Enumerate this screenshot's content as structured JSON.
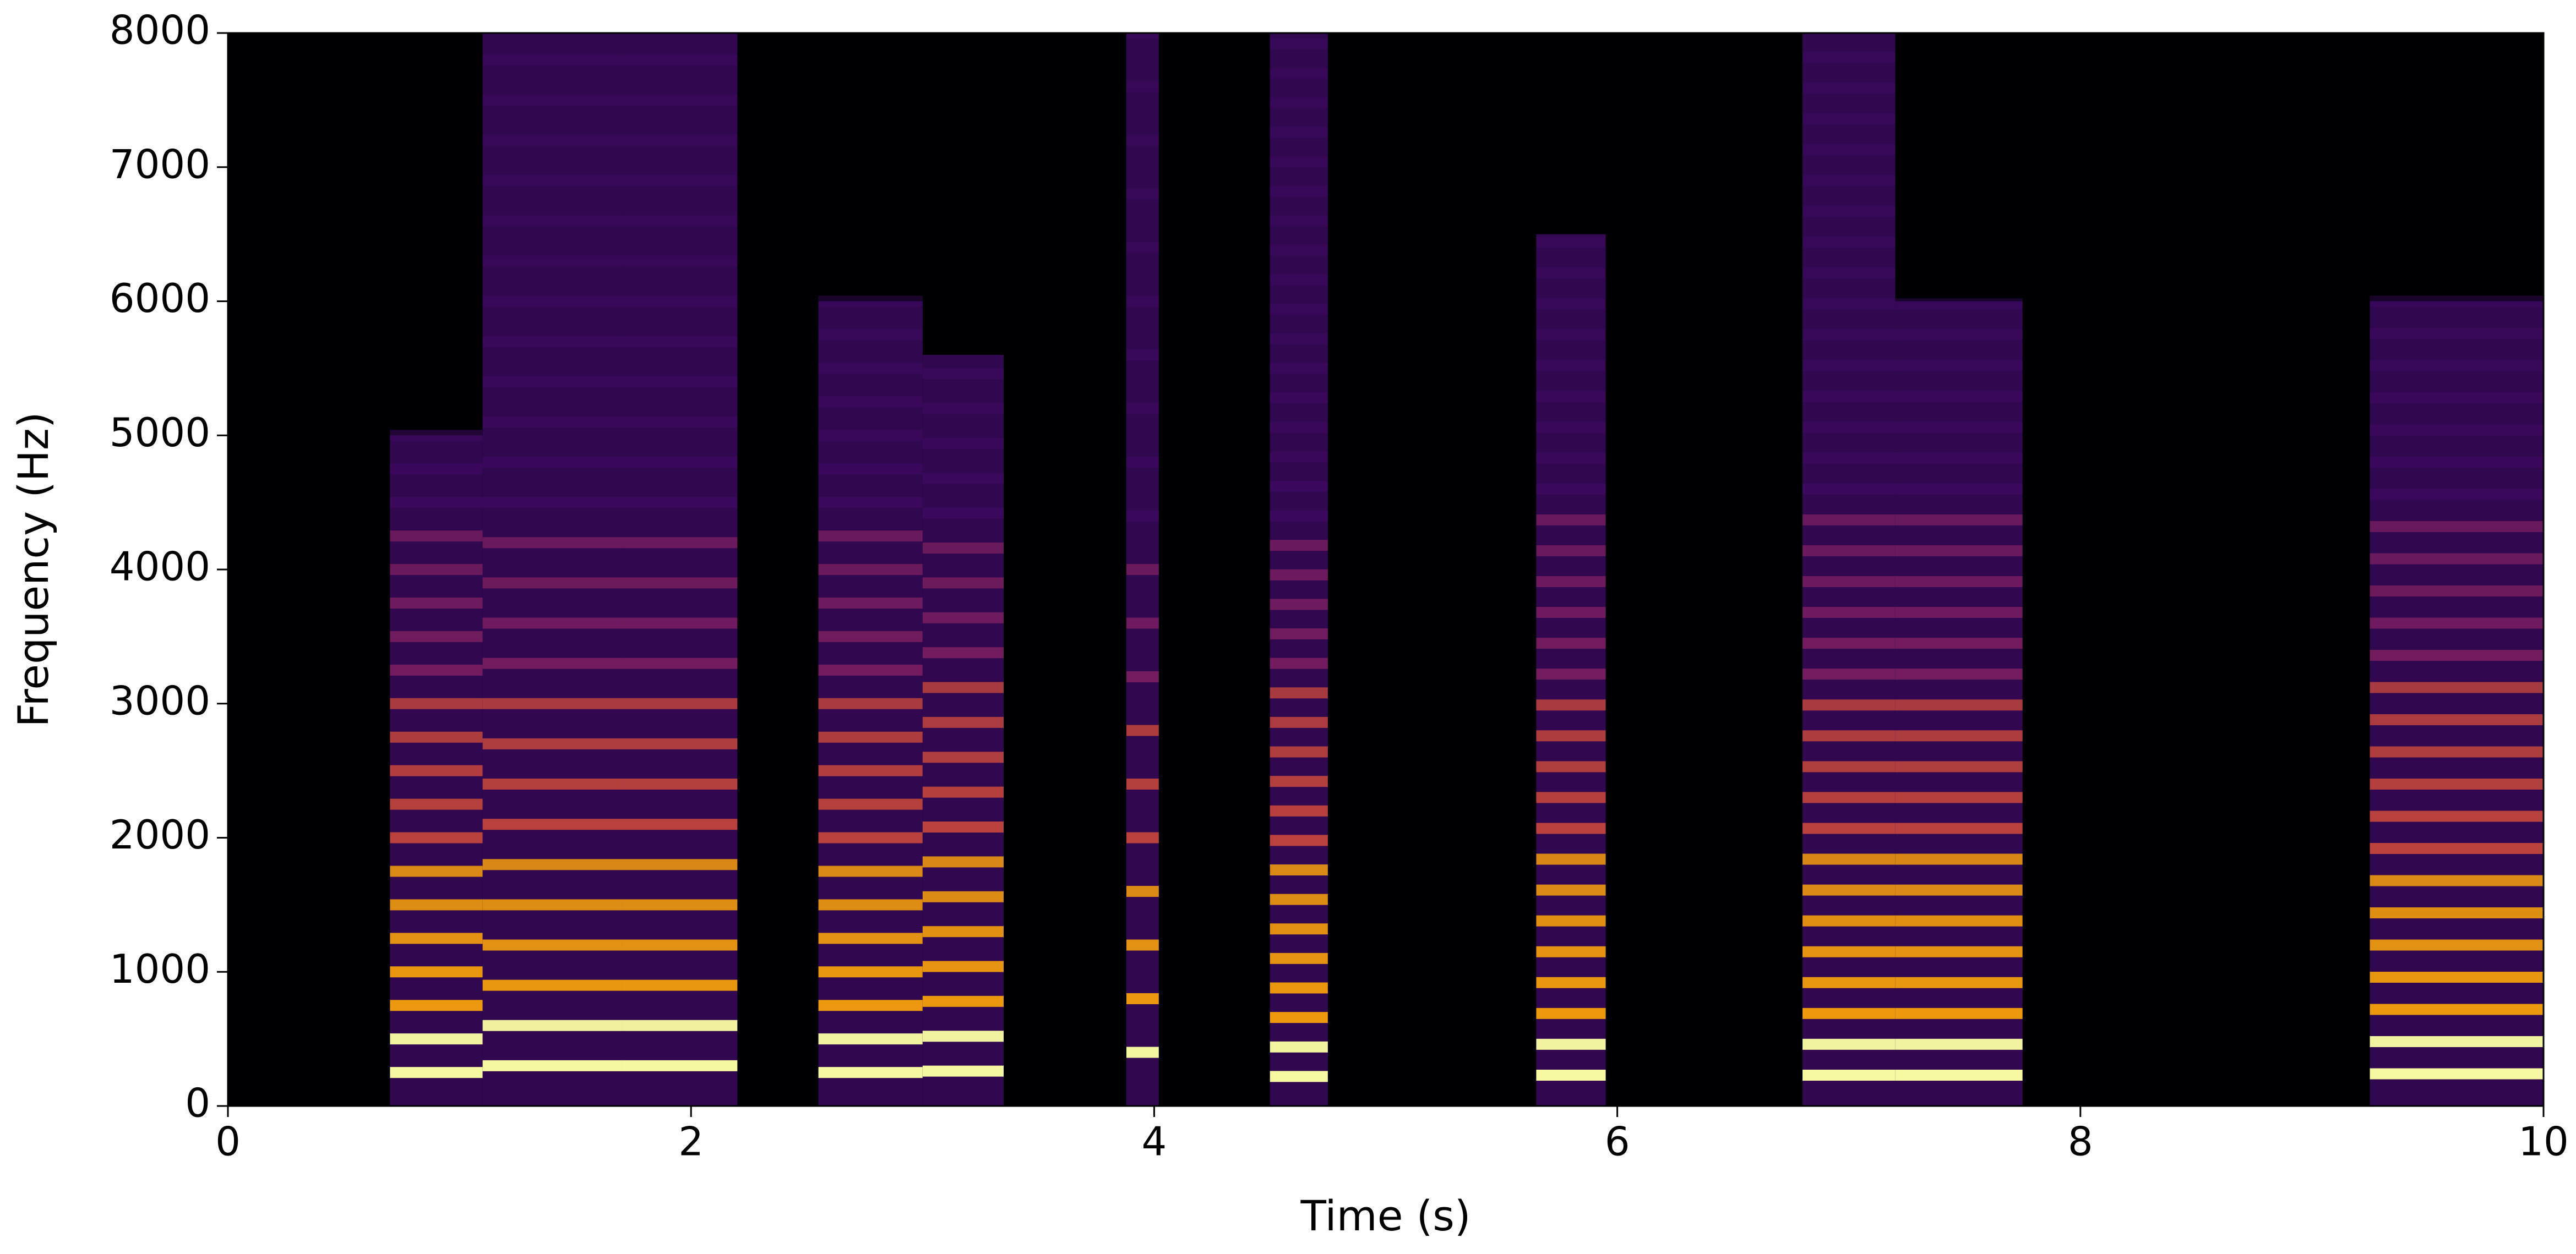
{
  "chart_data": {
    "type": "spectrogram",
    "xlabel": "Time (s)",
    "ylabel": "Frequency (Hz)",
    "xlim": [
      0,
      10
    ],
    "ylim": [
      0,
      8000
    ],
    "xticks": [
      0,
      2,
      4,
      6,
      8,
      10
    ],
    "yticks": [
      0,
      1000,
      2000,
      3000,
      4000,
      5000,
      6000,
      7000,
      8000
    ],
    "background": "#000004",
    "colormap": [
      "#420a68",
      "#932667",
      "#dd513a",
      "#fca50a",
      "#fcffa4"
    ],
    "segments": [
      {
        "start": 0.7,
        "end": 1.1,
        "top": 5000,
        "f0": 250
      },
      {
        "start": 1.1,
        "end": 1.7,
        "top": 8000,
        "f0": 300
      },
      {
        "start": 1.7,
        "end": 2.2,
        "top": 8000,
        "f0": 300
      },
      {
        "start": 2.55,
        "end": 3.0,
        "top": 6000,
        "f0": 250
      },
      {
        "start": 3.0,
        "end": 3.35,
        "top": 5600,
        "f0": 260
      },
      {
        "start": 3.88,
        "end": 4.02,
        "top": 8000,
        "f0": 400
      },
      {
        "start": 4.5,
        "end": 4.75,
        "top": 8000,
        "f0": 220
      },
      {
        "start": 5.65,
        "end": 5.95,
        "top": 6500,
        "f0": 230
      },
      {
        "start": 6.8,
        "end": 7.2,
        "top": 8000,
        "f0": 230
      },
      {
        "start": 7.2,
        "end": 7.75,
        "top": 6000,
        "f0": 230
      },
      {
        "start": 9.25,
        "end": 10,
        "top": 6000,
        "f0": 240
      }
    ]
  }
}
